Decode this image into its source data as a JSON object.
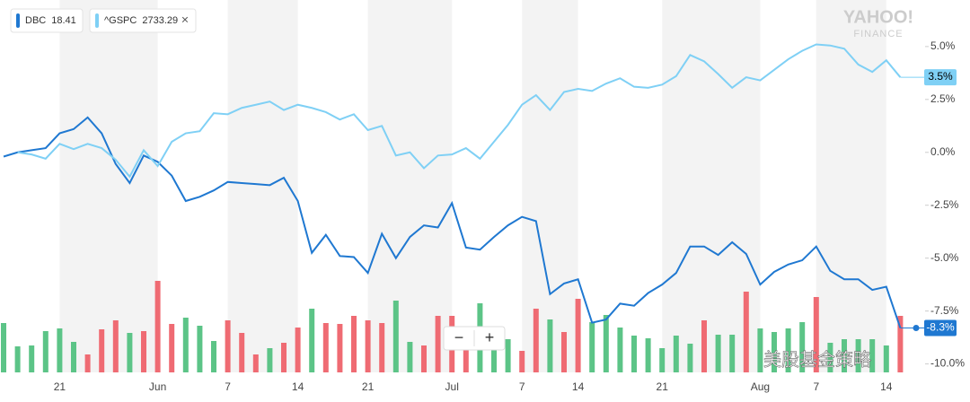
{
  "chart_data": {
    "type": "line",
    "series": [
      {
        "name": "DBC",
        "price": 18.41,
        "color": "#1f78d1",
        "last_label": "-8.3%",
        "values": [
          -0.2,
          0.0,
          0.1,
          0.2,
          0.9,
          1.1,
          1.65,
          0.9,
          -0.55,
          -1.45,
          -0.15,
          -0.45,
          -1.1,
          -2.3,
          -2.1,
          -1.8,
          -1.4,
          -1.45,
          -1.5,
          -1.55,
          -1.2,
          -2.3,
          -4.75,
          -3.9,
          -4.9,
          -4.95,
          -5.7,
          -3.85,
          -5.0,
          -4.0,
          -3.45,
          -3.55,
          -2.4,
          -4.5,
          -4.6,
          -4.0,
          -3.45,
          -3.05,
          -3.25,
          -6.7,
          -6.2,
          -6.0,
          -8.05,
          -7.9,
          -7.15,
          -7.25,
          -6.65,
          -6.25,
          -5.7,
          -4.45,
          -4.45,
          -4.85,
          -4.25,
          -4.8,
          -6.25,
          -5.65,
          -5.3,
          -5.1,
          -4.45,
          -5.6,
          -6.0,
          -6.0,
          -6.5,
          -6.35,
          -8.3
        ]
      },
      {
        "name": "^GSPC",
        "price": 2733.29,
        "color": "#7fd0f5",
        "last_label": "3.5%",
        "values": [
          null,
          0.0,
          -0.1,
          -0.3,
          0.4,
          0.15,
          0.4,
          0.2,
          -0.35,
          -1.15,
          0.1,
          -0.65,
          0.5,
          0.9,
          1.0,
          1.85,
          1.8,
          2.1,
          2.25,
          2.4,
          2.0,
          2.25,
          2.1,
          1.9,
          1.55,
          1.8,
          1.05,
          1.25,
          -0.15,
          0.0,
          -0.75,
          -0.15,
          -0.1,
          0.2,
          -0.3,
          0.5,
          1.3,
          2.25,
          2.7,
          2.0,
          2.85,
          3.0,
          2.9,
          3.25,
          3.5,
          3.1,
          3.05,
          3.2,
          3.6,
          4.6,
          4.3,
          3.7,
          3.05,
          3.55,
          3.4,
          3.9,
          4.4,
          4.8,
          5.1,
          5.05,
          4.9,
          4.15,
          3.8,
          4.35,
          3.55
        ]
      }
    ],
    "categories": [
      null,
      null,
      null,
      null,
      "21",
      null,
      null,
      null,
      null,
      null,
      null,
      "Jun",
      null,
      null,
      null,
      null,
      "7",
      null,
      null,
      null,
      null,
      "14",
      null,
      null,
      null,
      null,
      "21",
      null,
      null,
      null,
      null,
      null,
      "Jul",
      null,
      null,
      null,
      null,
      "7",
      null,
      null,
      null,
      "14",
      null,
      null,
      null,
      null,
      null,
      "21",
      null,
      null,
      null,
      null,
      null,
      null,
      "Aug",
      null,
      null,
      null,
      "7",
      null,
      null,
      null,
      null,
      "14",
      null
    ],
    "ylim": [
      -10.4,
      7.2
    ],
    "yticks": [
      {
        "value": 5,
        "label": "5.0%"
      },
      {
        "value": 2.5,
        "label": "2.5%"
      },
      {
        "value": 0,
        "label": "0.0%"
      },
      {
        "value": -2.5,
        "label": "-2.5%"
      },
      {
        "value": -5,
        "label": "-5.0%"
      },
      {
        "value": -7.5,
        "label": "-7.5%"
      },
      {
        "value": -10,
        "label": "-10.0%"
      }
    ],
    "volume": {
      "ylim": [
        0,
        415
      ],
      "values": [
        55,
        29,
        30,
        46,
        49,
        34,
        20,
        48,
        58,
        44,
        46,
        102,
        54,
        61,
        52,
        35,
        58,
        44,
        20,
        27,
        33,
        50,
        71,
        55,
        54,
        63,
        58,
        55,
        80,
        34,
        30,
        63,
        63,
        40,
        77,
        36,
        37,
        24,
        71,
        59,
        45,
        82,
        56,
        64,
        50,
        41,
        38,
        27,
        41,
        32,
        58,
        42,
        42,
        90,
        49,
        45,
        49,
        56,
        84,
        33,
        37,
        37,
        37,
        30,
        63
      ],
      "colors": [
        "#5cc487",
        "#5cc487",
        "#5cc487",
        "#5cc487",
        "#5cc487",
        "#5cc487",
        "#ef6b73",
        "#ef6b73",
        "#ef6b73",
        "#5cc487",
        "#ef6b73",
        "#ef6b73",
        "#ef6b73",
        "#5cc487",
        "#5cc487",
        "#5cc487",
        "#ef6b73",
        "#ef6b73",
        "#ef6b73",
        "#5cc487",
        "#ef6b73",
        "#ef6b73",
        "#5cc487",
        "#ef6b73",
        "#ef6b73",
        "#ef6b73",
        "#ef6b73",
        "#ef6b73",
        "#5cc487",
        "#5cc487",
        "#ef6b73",
        "#ef6b73",
        "#ef6b73",
        "#ef6b73",
        "#5cc487",
        "#5cc487",
        "#5cc487",
        "#ef6b73",
        "#ef6b73",
        "#5cc487",
        "#ef6b73",
        "#ef6b73",
        "#5cc487",
        "#5cc487",
        "#5cc487",
        "#5cc487",
        "#5cc487",
        "#5cc487",
        "#5cc487",
        "#5cc487",
        "#ef6b73",
        "#5cc487",
        "#5cc487",
        "#ef6b73",
        "#5cc487",
        "#5cc487",
        "#5cc487",
        "#5cc487",
        "#ef6b73",
        "#5cc487",
        "#5cc487",
        "#5cc487",
        "#5cc487",
        "#5cc487",
        "#ef6b73"
      ]
    },
    "close_icon": "×",
    "zoom_out": "−",
    "zoom_in": "+",
    "logo": "YAHOO!",
    "logo_sub": "FINANCE",
    "watermark": "美股基金策略"
  }
}
